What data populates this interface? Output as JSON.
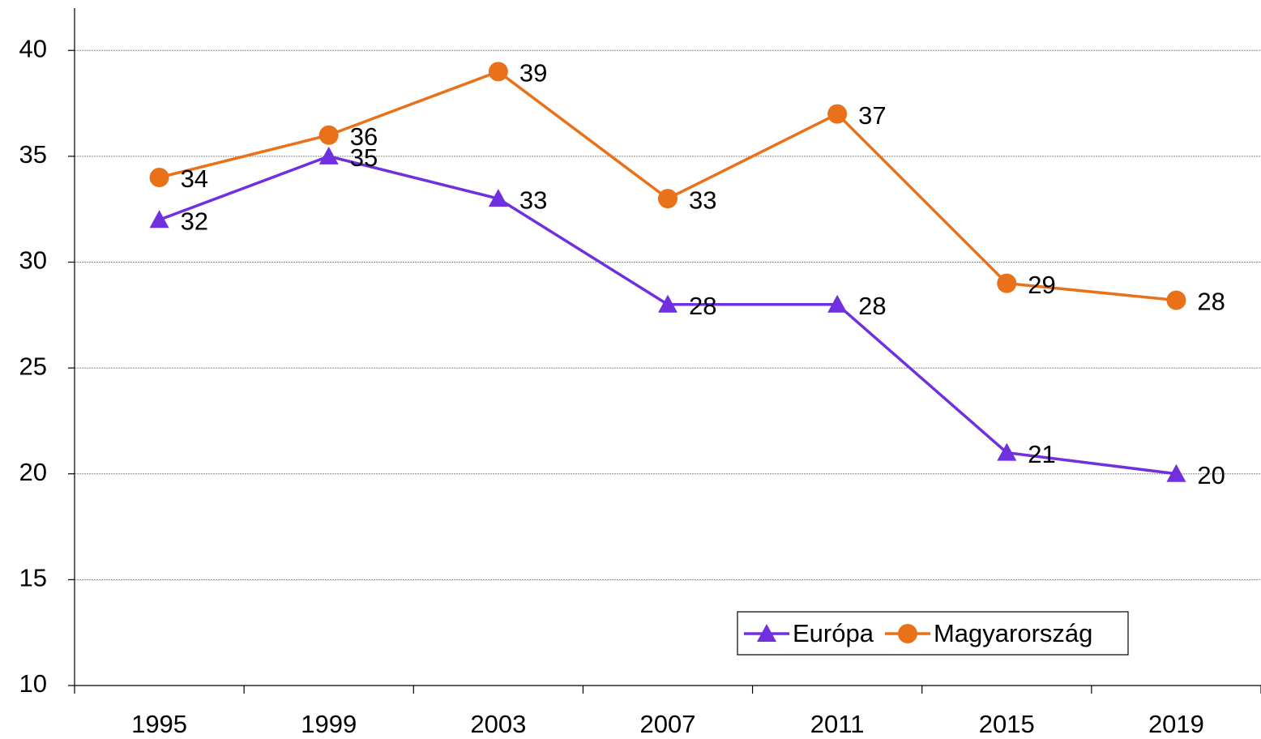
{
  "chart_data": {
    "type": "line",
    "categories": [
      "1995",
      "1999",
      "2003",
      "2007",
      "2011",
      "2015",
      "2019"
    ],
    "series": [
      {
        "name": "Európa",
        "color": "#7030e0",
        "marker": "triangle",
        "values": [
          32,
          35,
          33,
          28,
          28,
          21,
          20
        ]
      },
      {
        "name": "Magyarország",
        "color": "#e8711a",
        "marker": "circle",
        "values": [
          34,
          36,
          39,
          33,
          37,
          29,
          28.2
        ],
        "value_labels": [
          "34",
          "36",
          "39",
          "33",
          "37",
          "29",
          "28"
        ]
      }
    ],
    "ylim": [
      10,
      42
    ],
    "yticks": [
      10,
      15,
      20,
      25,
      30,
      35,
      40
    ],
    "grid": true,
    "legend": "lower right"
  }
}
